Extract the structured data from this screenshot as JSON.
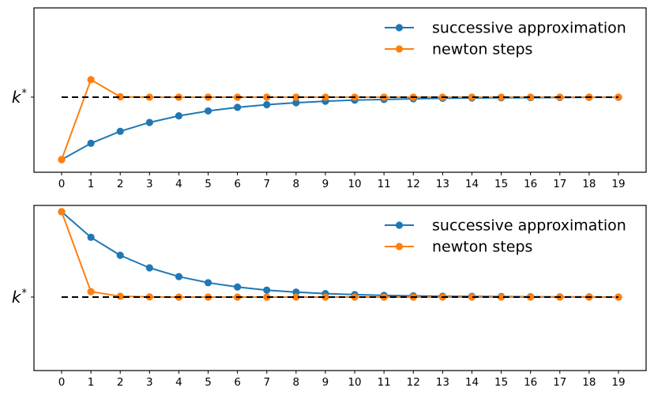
{
  "figure": {
    "background": "#ffffff",
    "axis_color": "#000000",
    "tick_label_color": "#000000"
  },
  "chart_data": [
    {
      "type": "line",
      "title": "",
      "xlabel": "",
      "ylabel": "",
      "x": [
        0,
        1,
        2,
        3,
        4,
        5,
        6,
        7,
        8,
        9,
        10,
        11,
        12,
        13,
        14,
        15,
        16,
        17,
        18,
        19
      ],
      "xticks": [
        "0",
        "1",
        "2",
        "3",
        "4",
        "5",
        "6",
        "7",
        "8",
        "9",
        "10",
        "11",
        "12",
        "13",
        "14",
        "15",
        "16",
        "17",
        "18",
        "19"
      ],
      "xlim": [
        -0.95,
        19.95
      ],
      "ylim": [
        0,
        1
      ],
      "grid": false,
      "y_axis_note": "no numeric y ticks; single reference tick labeled k* (values below are axis fractions)",
      "series": [
        {
          "name": "successive approximation",
          "color": "#1f77b4",
          "marker": "circle",
          "values": [
            0.077,
            0.176,
            0.249,
            0.303,
            0.343,
            0.373,
            0.395,
            0.411,
            0.423,
            0.432,
            0.439,
            0.443,
            0.447,
            0.45,
            0.452,
            0.453,
            0.454,
            0.455,
            0.456,
            0.456
          ]
        },
        {
          "name": "newton steps",
          "color": "#ff7f0e",
          "marker": "circle",
          "values": [
            0.077,
            0.563,
            0.459,
            0.457,
            0.457,
            0.457,
            0.457,
            0.457,
            0.457,
            0.457,
            0.457,
            0.457,
            0.457,
            0.457,
            0.457,
            0.457,
            0.457,
            0.457,
            0.457,
            0.457
          ]
        }
      ],
      "reference_line": {
        "label_base": "k",
        "label_sup": "*",
        "value": 0.457,
        "style": "dashed",
        "color": "#000000",
        "x_start": 0,
        "x_end": 19
      },
      "legend": {
        "position": "upper right",
        "frame": false,
        "entries": [
          "successive approximation",
          "newton steps"
        ]
      }
    },
    {
      "type": "line",
      "title": "",
      "xlabel": "",
      "ylabel": "",
      "x": [
        0,
        1,
        2,
        3,
        4,
        5,
        6,
        7,
        8,
        9,
        10,
        11,
        12,
        13,
        14,
        15,
        16,
        17,
        18,
        19
      ],
      "xticks": [
        "0",
        "1",
        "2",
        "3",
        "4",
        "5",
        "6",
        "7",
        "8",
        "9",
        "10",
        "11",
        "12",
        "13",
        "14",
        "15",
        "16",
        "17",
        "18",
        "19"
      ],
      "xlim": [
        -0.95,
        19.95
      ],
      "ylim": [
        0,
        1
      ],
      "grid": false,
      "y_axis_note": "no numeric y ticks; single reference tick labeled k* (values below are axis fractions)",
      "series": [
        {
          "name": "successive approximation",
          "color": "#1f77b4",
          "marker": "circle",
          "values": [
            0.962,
            0.807,
            0.698,
            0.622,
            0.569,
            0.532,
            0.506,
            0.487,
            0.475,
            0.466,
            0.46,
            0.455,
            0.452,
            0.45,
            0.449,
            0.448,
            0.447,
            0.446,
            0.446,
            0.445
          ]
        },
        {
          "name": "newton steps",
          "color": "#ff7f0e",
          "marker": "circle",
          "values": [
            0.962,
            0.478,
            0.45,
            0.446,
            0.445,
            0.445,
            0.445,
            0.445,
            0.445,
            0.445,
            0.445,
            0.445,
            0.445,
            0.445,
            0.445,
            0.445,
            0.445,
            0.445,
            0.445,
            0.445
          ]
        }
      ],
      "reference_line": {
        "label_base": "k",
        "label_sup": "*",
        "value": 0.445,
        "style": "dashed",
        "color": "#000000",
        "x_start": 0,
        "x_end": 19
      },
      "legend": {
        "position": "upper right",
        "frame": false,
        "entries": [
          "successive approximation",
          "newton steps"
        ]
      }
    }
  ]
}
